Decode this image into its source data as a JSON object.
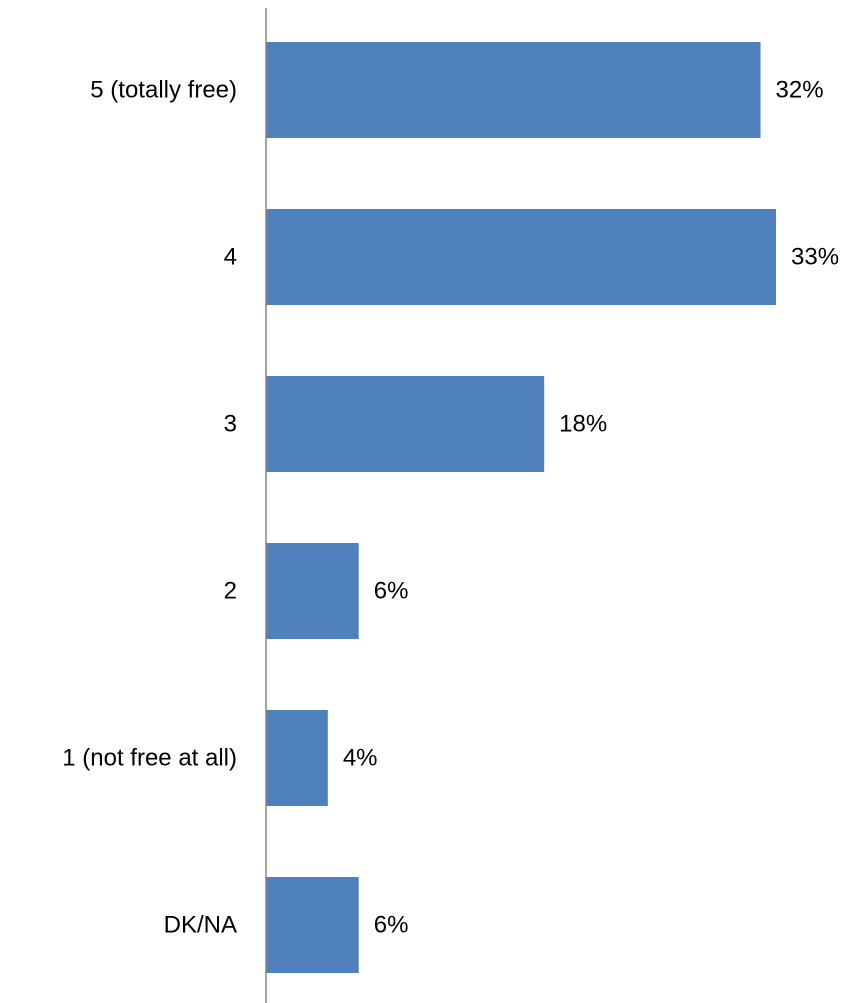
{
  "colors": {
    "bar": "#4F81BD",
    "axis": "#868686",
    "text": "#000000"
  },
  "chart_data": {
    "type": "bar",
    "orientation": "horizontal",
    "categories": [
      "5 (totally free)",
      "4",
      "3",
      "2",
      "1 (not free at all)",
      "DK/NA"
    ],
    "values": [
      32,
      33,
      18,
      6,
      4,
      6
    ],
    "value_labels": [
      "32%",
      "33%",
      "18%",
      "6%",
      "4%",
      "6%"
    ],
    "title": "",
    "xlabel": "",
    "ylabel": "",
    "xlim": [
      0,
      33
    ],
    "grid": false,
    "legend": "none"
  }
}
